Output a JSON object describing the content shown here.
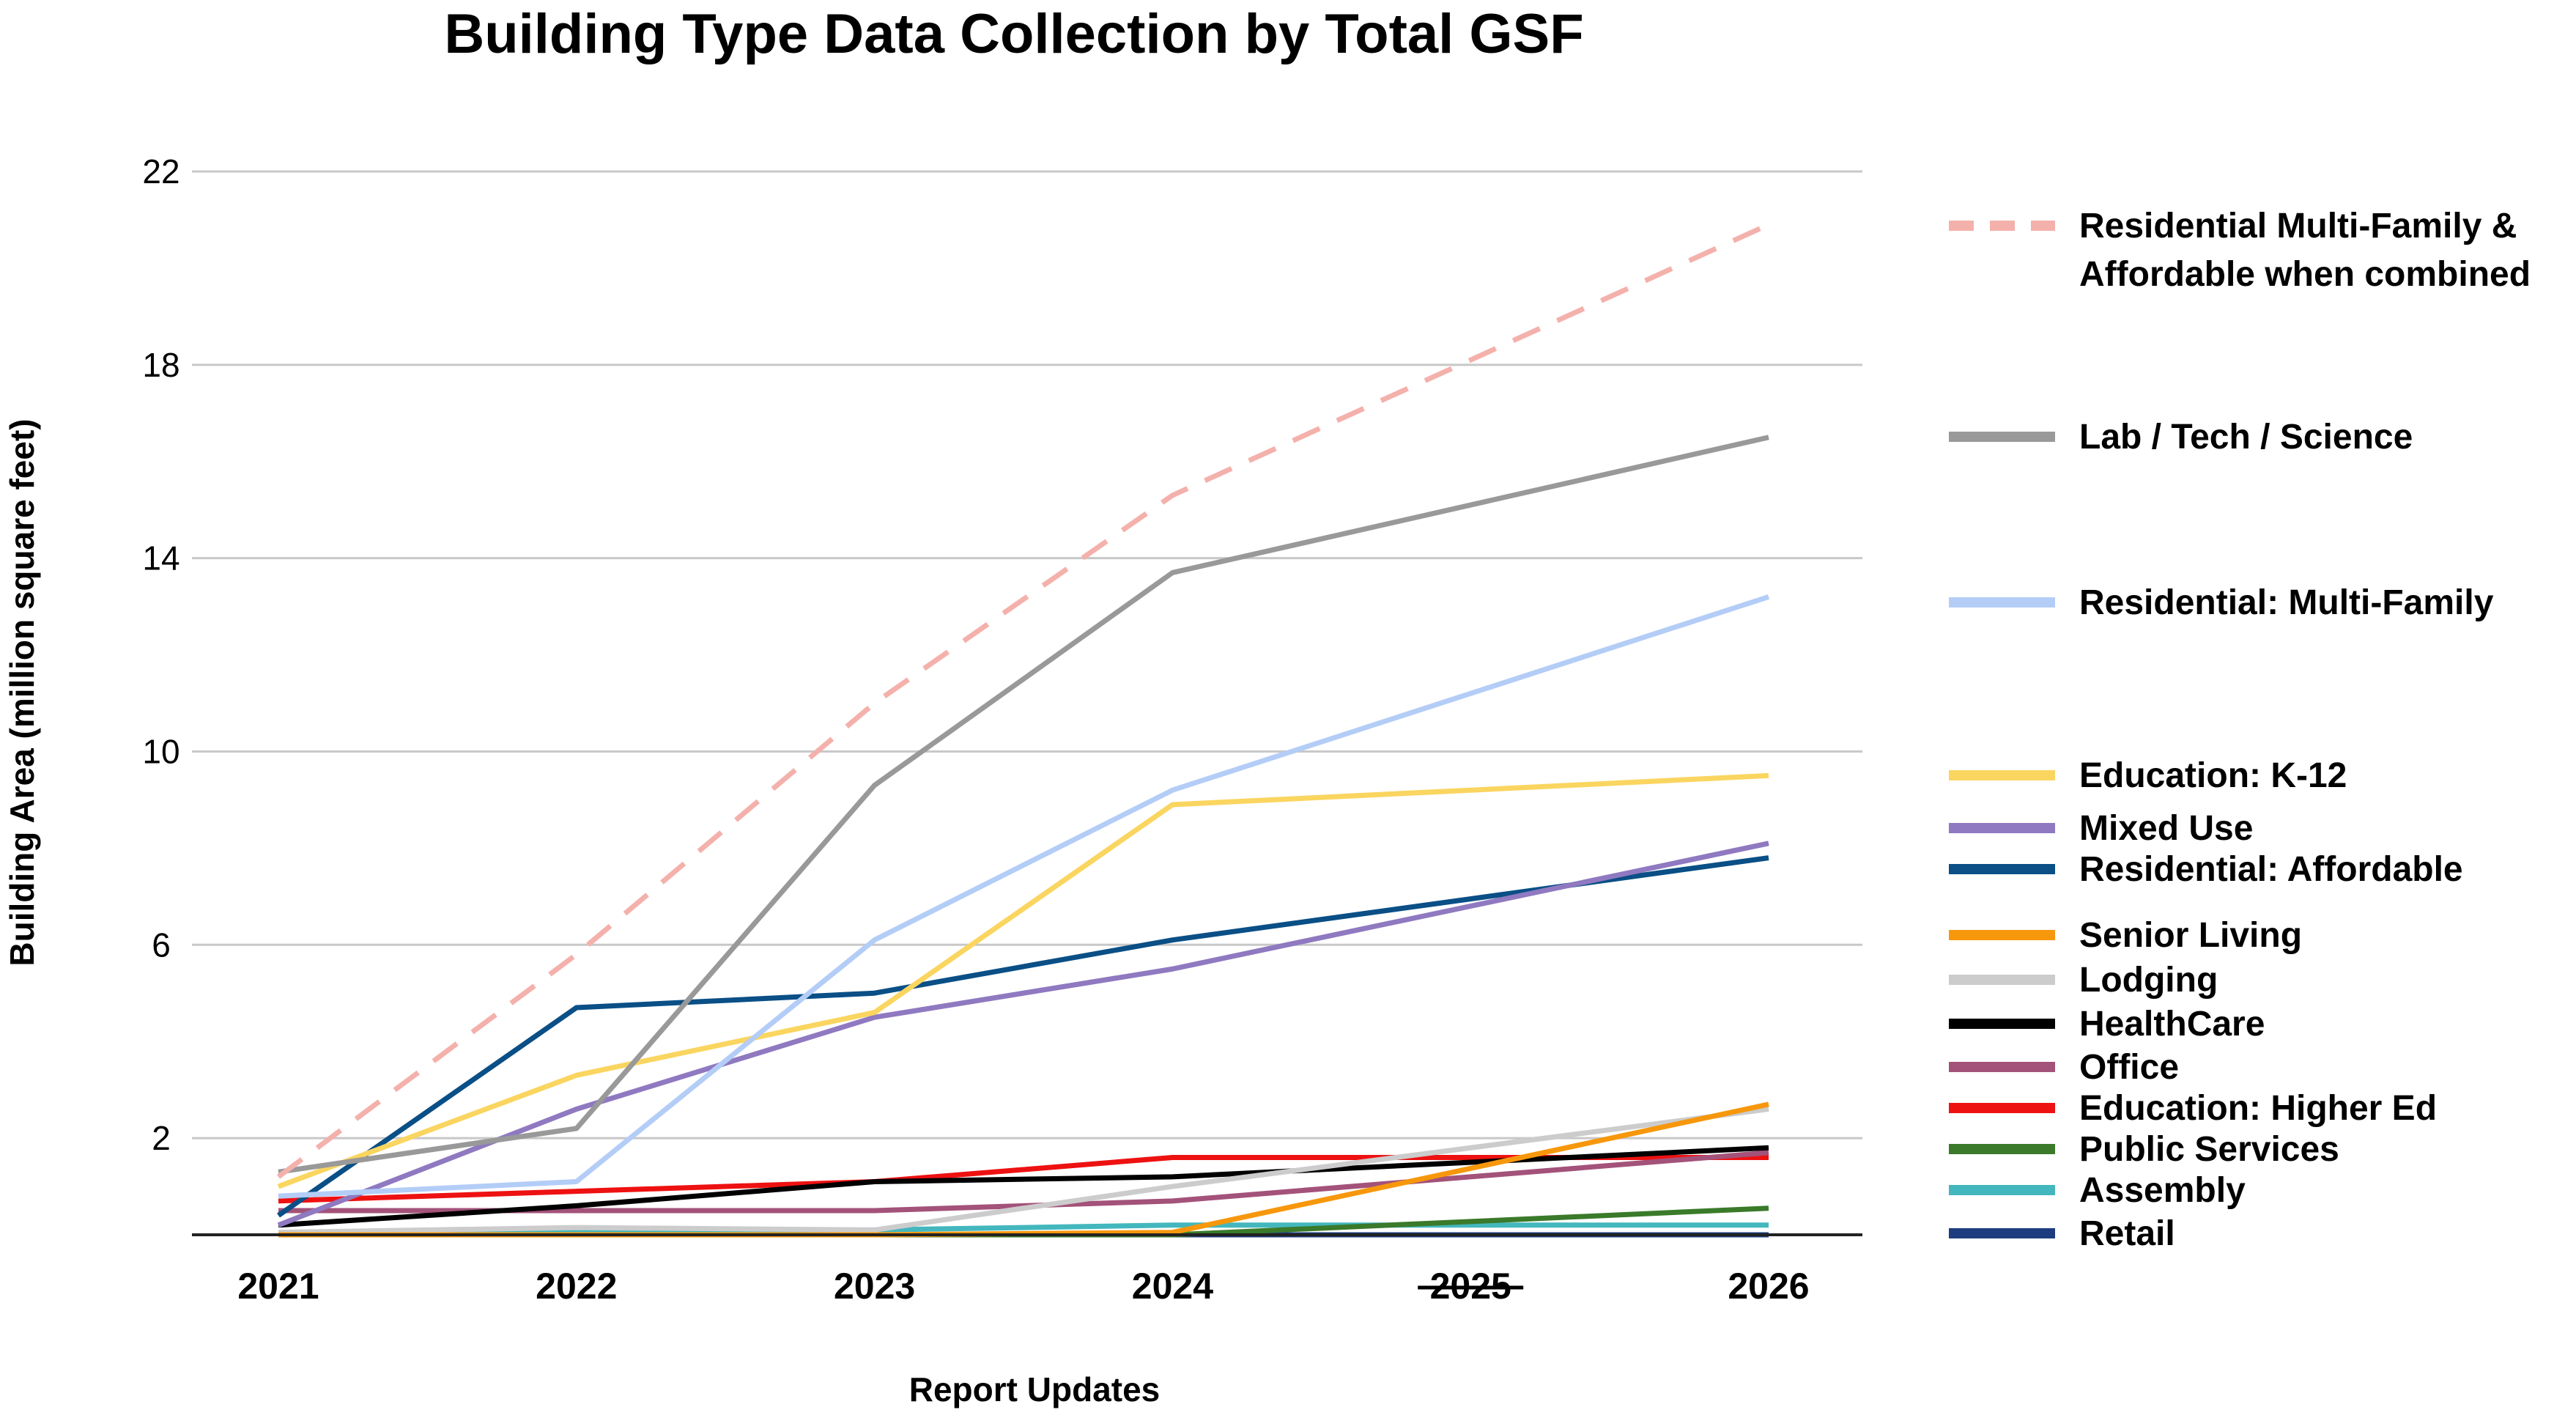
{
  "chart_data": {
    "type": "line",
    "title": "Building Type Data Collection by Total GSF",
    "xlabel": "Report Updates",
    "ylabel": "Building Area (million square feet)",
    "x": [
      "2021",
      "2022",
      "2023",
      "2024",
      "2025",
      "2026"
    ],
    "x_struck": [
      "2025"
    ],
    "yticks": [
      "2",
      "6",
      "10",
      "14",
      "18",
      "22"
    ],
    "ylim": [
      0,
      22.5
    ],
    "grid": "horizontal",
    "legend_position": "right",
    "series": [
      {
        "name": "Residential Multi-Family & Affordable when combined",
        "legend_lines": [
          "Residential Multi-Family &",
          "Affordable when combined"
        ],
        "color": "#f4b1ac",
        "dashed": true,
        "points": [
          [
            2021,
            1.2
          ],
          [
            2022,
            5.8
          ],
          [
            2023,
            11.0
          ],
          [
            2024,
            15.3
          ],
          [
            2026,
            20.9
          ]
        ]
      },
      {
        "name": "Lab / Tech / Science",
        "color": "#999999",
        "points": [
          [
            2021,
            1.3
          ],
          [
            2022,
            2.2
          ],
          [
            2023,
            9.3
          ],
          [
            2024,
            13.7
          ],
          [
            2026,
            16.5
          ]
        ]
      },
      {
        "name": "Residential: Multi-Family",
        "color": "#b3cdf7",
        "points": [
          [
            2021,
            0.8
          ],
          [
            2022,
            1.1
          ],
          [
            2023,
            6.1
          ],
          [
            2024,
            9.2
          ],
          [
            2026,
            13.2
          ]
        ]
      },
      {
        "name": "Education: K-12",
        "color": "#fad55f",
        "points": [
          [
            2021,
            1.0
          ],
          [
            2022,
            3.3
          ],
          [
            2023,
            4.6
          ],
          [
            2024,
            8.9
          ],
          [
            2026,
            9.5
          ]
        ]
      },
      {
        "name": "Mixed Use",
        "color": "#8f79c0",
        "points": [
          [
            2021,
            0.2
          ],
          [
            2022,
            2.6
          ],
          [
            2023,
            4.5
          ],
          [
            2024,
            5.5
          ],
          [
            2026,
            8.1
          ]
        ]
      },
      {
        "name": "Residential: Affordable",
        "color": "#0a4f86",
        "points": [
          [
            2021,
            0.4
          ],
          [
            2022,
            4.7
          ],
          [
            2023,
            5.0
          ],
          [
            2024,
            6.1
          ],
          [
            2026,
            7.8
          ]
        ]
      },
      {
        "name": "Senior Living",
        "color": "#f7970c",
        "points": [
          [
            2021,
            0.0
          ],
          [
            2022,
            0.0
          ],
          [
            2023,
            0.0
          ],
          [
            2024,
            0.05
          ],
          [
            2026,
            2.7
          ]
        ]
      },
      {
        "name": "Lodging",
        "color": "#cccccc",
        "points": [
          [
            2021,
            0.05
          ],
          [
            2022,
            0.15
          ],
          [
            2023,
            0.1
          ],
          [
            2024,
            1.0
          ],
          [
            2026,
            2.6
          ]
        ]
      },
      {
        "name": "HealthCare",
        "color": "#000000",
        "points": [
          [
            2021,
            0.2
          ],
          [
            2022,
            0.6
          ],
          [
            2023,
            1.1
          ],
          [
            2024,
            1.2
          ],
          [
            2026,
            1.8
          ]
        ]
      },
      {
        "name": "Office",
        "color": "#a3527a",
        "points": [
          [
            2021,
            0.5
          ],
          [
            2022,
            0.5
          ],
          [
            2023,
            0.5
          ],
          [
            2024,
            0.7
          ],
          [
            2026,
            1.7
          ]
        ]
      },
      {
        "name": "Education: Higher Ed",
        "color": "#ee1111",
        "points": [
          [
            2021,
            0.7
          ],
          [
            2022,
            0.9
          ],
          [
            2023,
            1.1
          ],
          [
            2024,
            1.6
          ],
          [
            2025,
            1.6
          ],
          [
            2026,
            1.6
          ]
        ]
      },
      {
        "name": "Public Services",
        "color": "#3a7a2a",
        "points": [
          [
            2021,
            0.0
          ],
          [
            2022,
            0.0
          ],
          [
            2023,
            0.0
          ],
          [
            2024,
            0.0
          ],
          [
            2026,
            0.55
          ]
        ]
      },
      {
        "name": "Assembly",
        "color": "#43b7bd",
        "points": [
          [
            2021,
            0.0
          ],
          [
            2022,
            0.05
          ],
          [
            2023,
            0.1
          ],
          [
            2024,
            0.2
          ],
          [
            2026,
            0.2
          ]
        ]
      },
      {
        "name": "Retail",
        "color": "#1d3c80",
        "points": [
          [
            2021,
            0.0
          ],
          [
            2022,
            0.0
          ],
          [
            2023,
            0.0
          ],
          [
            2024,
            0.0
          ],
          [
            2026,
            0.0
          ]
        ]
      }
    ]
  }
}
